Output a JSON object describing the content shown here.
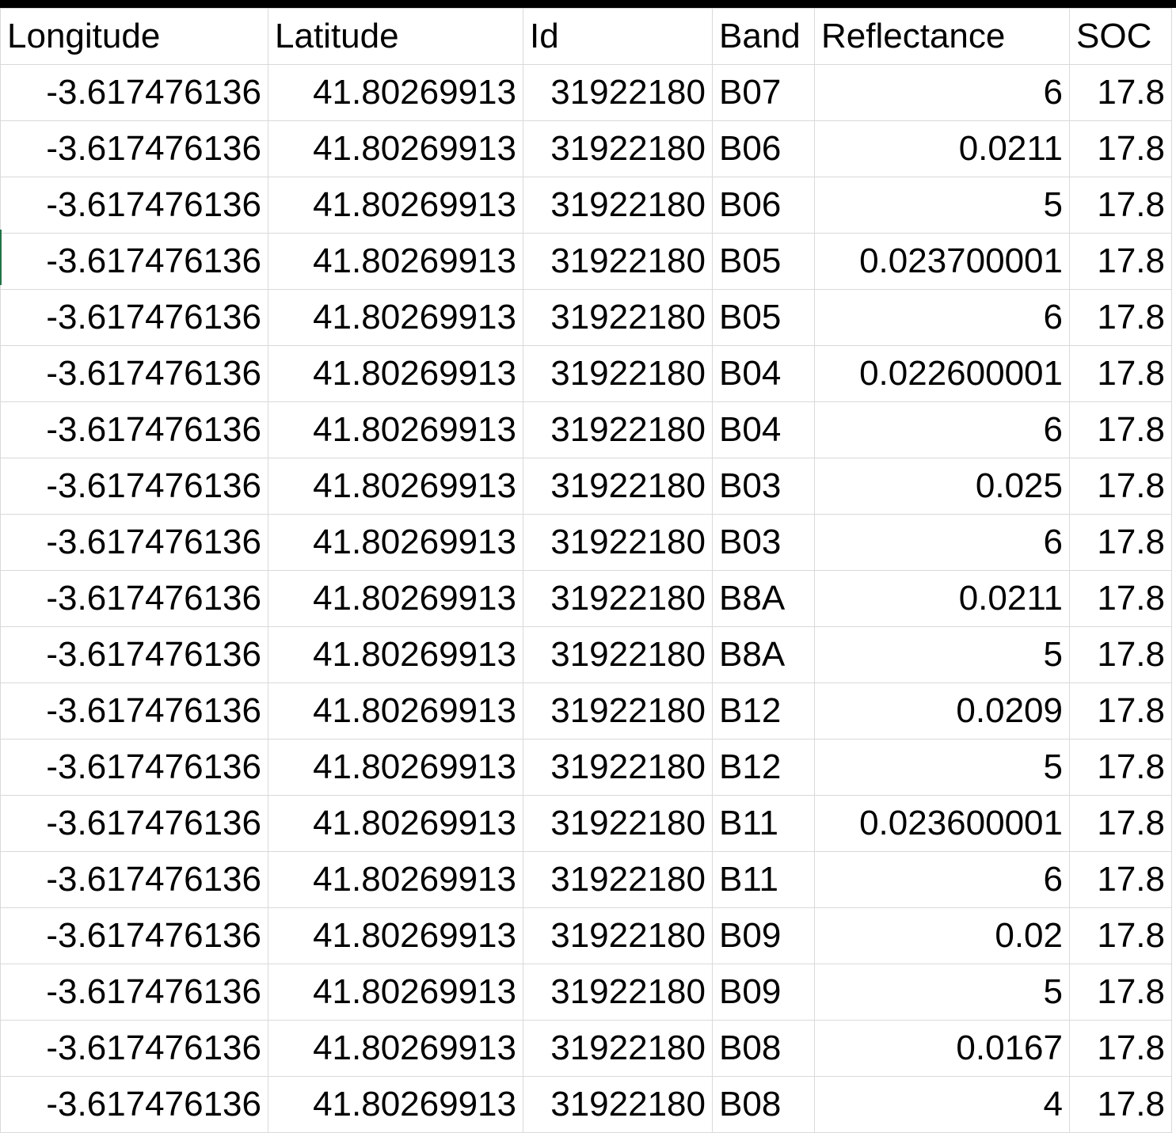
{
  "columns": {
    "longitude": "Longitude",
    "latitude": "Latitude",
    "id": "Id",
    "band": "Band",
    "reflectance": "Reflectance",
    "soc": "SOC"
  },
  "rows": [
    {
      "longitude": "-3.617476136",
      "latitude": "41.80269913",
      "id": "31922180",
      "band": "B07",
      "reflectance": "6",
      "soc": "17.8"
    },
    {
      "longitude": "-3.617476136",
      "latitude": "41.80269913",
      "id": "31922180",
      "band": "B06",
      "reflectance": "0.0211",
      "soc": "17.8"
    },
    {
      "longitude": "-3.617476136",
      "latitude": "41.80269913",
      "id": "31922180",
      "band": "B06",
      "reflectance": "5",
      "soc": "17.8"
    },
    {
      "longitude": "-3.617476136",
      "latitude": "41.80269913",
      "id": "31922180",
      "band": "B05",
      "reflectance": "0.023700001",
      "soc": "17.8"
    },
    {
      "longitude": "-3.617476136",
      "latitude": "41.80269913",
      "id": "31922180",
      "band": "B05",
      "reflectance": "6",
      "soc": "17.8"
    },
    {
      "longitude": "-3.617476136",
      "latitude": "41.80269913",
      "id": "31922180",
      "band": "B04",
      "reflectance": "0.022600001",
      "soc": "17.8"
    },
    {
      "longitude": "-3.617476136",
      "latitude": "41.80269913",
      "id": "31922180",
      "band": "B04",
      "reflectance": "6",
      "soc": "17.8"
    },
    {
      "longitude": "-3.617476136",
      "latitude": "41.80269913",
      "id": "31922180",
      "band": "B03",
      "reflectance": "0.025",
      "soc": "17.8"
    },
    {
      "longitude": "-3.617476136",
      "latitude": "41.80269913",
      "id": "31922180",
      "band": "B03",
      "reflectance": "6",
      "soc": "17.8"
    },
    {
      "longitude": "-3.617476136",
      "latitude": "41.80269913",
      "id": "31922180",
      "band": "B8A",
      "reflectance": "0.0211",
      "soc": "17.8"
    },
    {
      "longitude": "-3.617476136",
      "latitude": "41.80269913",
      "id": "31922180",
      "band": "B8A",
      "reflectance": "5",
      "soc": "17.8"
    },
    {
      "longitude": "-3.617476136",
      "latitude": "41.80269913",
      "id": "31922180",
      "band": "B12",
      "reflectance": "0.0209",
      "soc": "17.8"
    },
    {
      "longitude": "-3.617476136",
      "latitude": "41.80269913",
      "id": "31922180",
      "band": "B12",
      "reflectance": "5",
      "soc": "17.8"
    },
    {
      "longitude": "-3.617476136",
      "latitude": "41.80269913",
      "id": "31922180",
      "band": "B11",
      "reflectance": "0.023600001",
      "soc": "17.8"
    },
    {
      "longitude": "-3.617476136",
      "latitude": "41.80269913",
      "id": "31922180",
      "band": "B11",
      "reflectance": "6",
      "soc": "17.8"
    },
    {
      "longitude": "-3.617476136",
      "latitude": "41.80269913",
      "id": "31922180",
      "band": "B09",
      "reflectance": "0.02",
      "soc": "17.8"
    },
    {
      "longitude": "-3.617476136",
      "latitude": "41.80269913",
      "id": "31922180",
      "band": "B09",
      "reflectance": "5",
      "soc": "17.8"
    },
    {
      "longitude": "-3.617476136",
      "latitude": "41.80269913",
      "id": "31922180",
      "band": "B08",
      "reflectance": "0.0167",
      "soc": "17.8"
    },
    {
      "longitude": "-3.617476136",
      "latitude": "41.80269913",
      "id": "31922180",
      "band": "B08",
      "reflectance": "4",
      "soc": "17.8"
    }
  ],
  "colors": {
    "gridline": "#d9d9d9",
    "text": "#000000",
    "selection": "#217346"
  }
}
